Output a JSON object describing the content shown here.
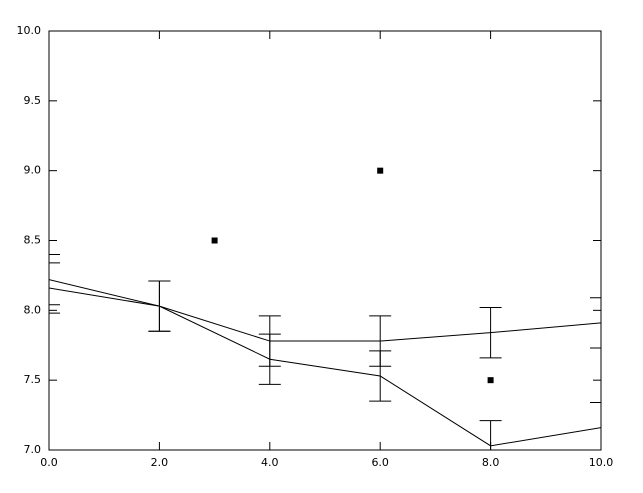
{
  "chart_data": {
    "type": "line",
    "x": [
      0,
      2,
      4,
      6,
      8,
      10
    ],
    "series": [
      {
        "color": "#000000",
        "values": [
          8.22,
          8.03,
          7.78,
          7.78,
          7.84,
          7.91
        ],
        "errors": [
          0.18,
          0.18,
          0.18,
          0.18,
          0.18,
          0.18
        ]
      },
      {
        "color": "#000000",
        "values": [
          8.16,
          8.03,
          7.65,
          7.53,
          7.03,
          7.16
        ],
        "errors": [
          0.18,
          0.18,
          0.18,
          0.18,
          0.18,
          0.18
        ]
      }
    ],
    "points": {
      "color": "#000000",
      "x": [
        3,
        6,
        8
      ],
      "values": [
        8.5,
        9.0,
        7.5
      ]
    },
    "xlim": [
      0,
      10
    ],
    "ylim": [
      7.0,
      10.0
    ],
    "xticks": [
      {
        "value": 0,
        "label": "0.0"
      },
      {
        "value": 2,
        "label": "2.0"
      },
      {
        "value": 4,
        "label": "4.0"
      },
      {
        "value": 6,
        "label": "6.0"
      },
      {
        "value": 8,
        "label": "8.0"
      },
      {
        "value": 10,
        "label": "10.0"
      }
    ],
    "yticks": [
      {
        "value": 7.0,
        "label": "7.0"
      },
      {
        "value": 7.5,
        "label": "7.5"
      },
      {
        "value": 8.0,
        "label": "8.0"
      },
      {
        "value": 8.5,
        "label": "8.5"
      },
      {
        "value": 9.0,
        "label": "9.0"
      },
      {
        "value": 9.5,
        "label": "9.5"
      },
      {
        "value": 10.0,
        "label": "10.0"
      }
    ]
  }
}
